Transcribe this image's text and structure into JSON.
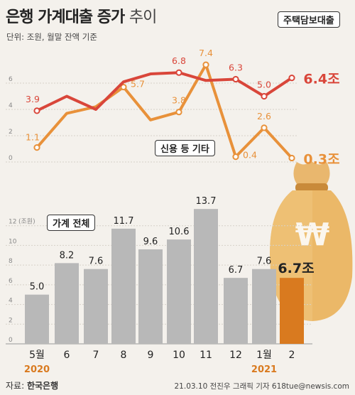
{
  "title_main": "은행 가계대출 증가",
  "title_light": "추이",
  "unit_text": "단위: 조원, 월말 잔액 기준",
  "source_label": "자료:",
  "source_name": "한국은행",
  "credit": "21.03.10 전진우 그래픽 기자 618tue@newsis.com",
  "colors": {
    "mortgage": "#d9463a",
    "other": "#e8913a",
    "bar": "#b8b8b8",
    "bar_highlight": "#d97a1f",
    "background": "#f4f1ec"
  },
  "chart_data": [
    {
      "type": "line",
      "x": [
        "5월",
        "6",
        "7",
        "8",
        "9",
        "10",
        "11",
        "12",
        "1월",
        "2"
      ],
      "ylim": [
        0,
        8
      ],
      "yticks": [
        "0",
        "2",
        "4",
        "6"
      ],
      "series": [
        {
          "name": "주택담보대출",
          "values": [
            3.9,
            5.0,
            4.0,
            6.1,
            6.7,
            6.8,
            6.2,
            6.3,
            5.0,
            6.4
          ],
          "labels": [
            "3.9",
            "",
            "",
            "",
            "",
            "6.8",
            "",
            "6.3",
            "5.0",
            "6.4조"
          ]
        },
        {
          "name": "신용 등 기타",
          "values": [
            1.1,
            3.7,
            4.2,
            5.7,
            3.2,
            3.8,
            7.4,
            0.4,
            2.6,
            0.3
          ],
          "labels": [
            "1.1",
            "",
            "",
            "5.7",
            "",
            "3.8",
            "7.4",
            "0.4",
            "2.6",
            "0.3조"
          ]
        }
      ]
    },
    {
      "type": "bar",
      "name": "가계 전체",
      "categories": [
        "5월",
        "6",
        "7",
        "8",
        "9",
        "10",
        "11",
        "12",
        "1월",
        "2"
      ],
      "values": [
        5.0,
        8.2,
        7.6,
        11.7,
        9.6,
        10.6,
        13.7,
        6.7,
        7.6,
        6.7
      ],
      "labels": [
        "5.0",
        "8.2",
        "7.6",
        "11.7",
        "9.6",
        "10.6",
        "13.7",
        "6.7",
        "7.6",
        "6.7조"
      ],
      "ylim": [
        0,
        14
      ],
      "yticks": [
        "0",
        "2",
        "4",
        "6",
        "8",
        "10",
        "12"
      ],
      "ytick_unit": "(조원)",
      "year_labels": [
        "2020",
        "",
        "",
        "",
        "",
        "",
        "",
        "",
        "2021",
        ""
      ]
    }
  ]
}
